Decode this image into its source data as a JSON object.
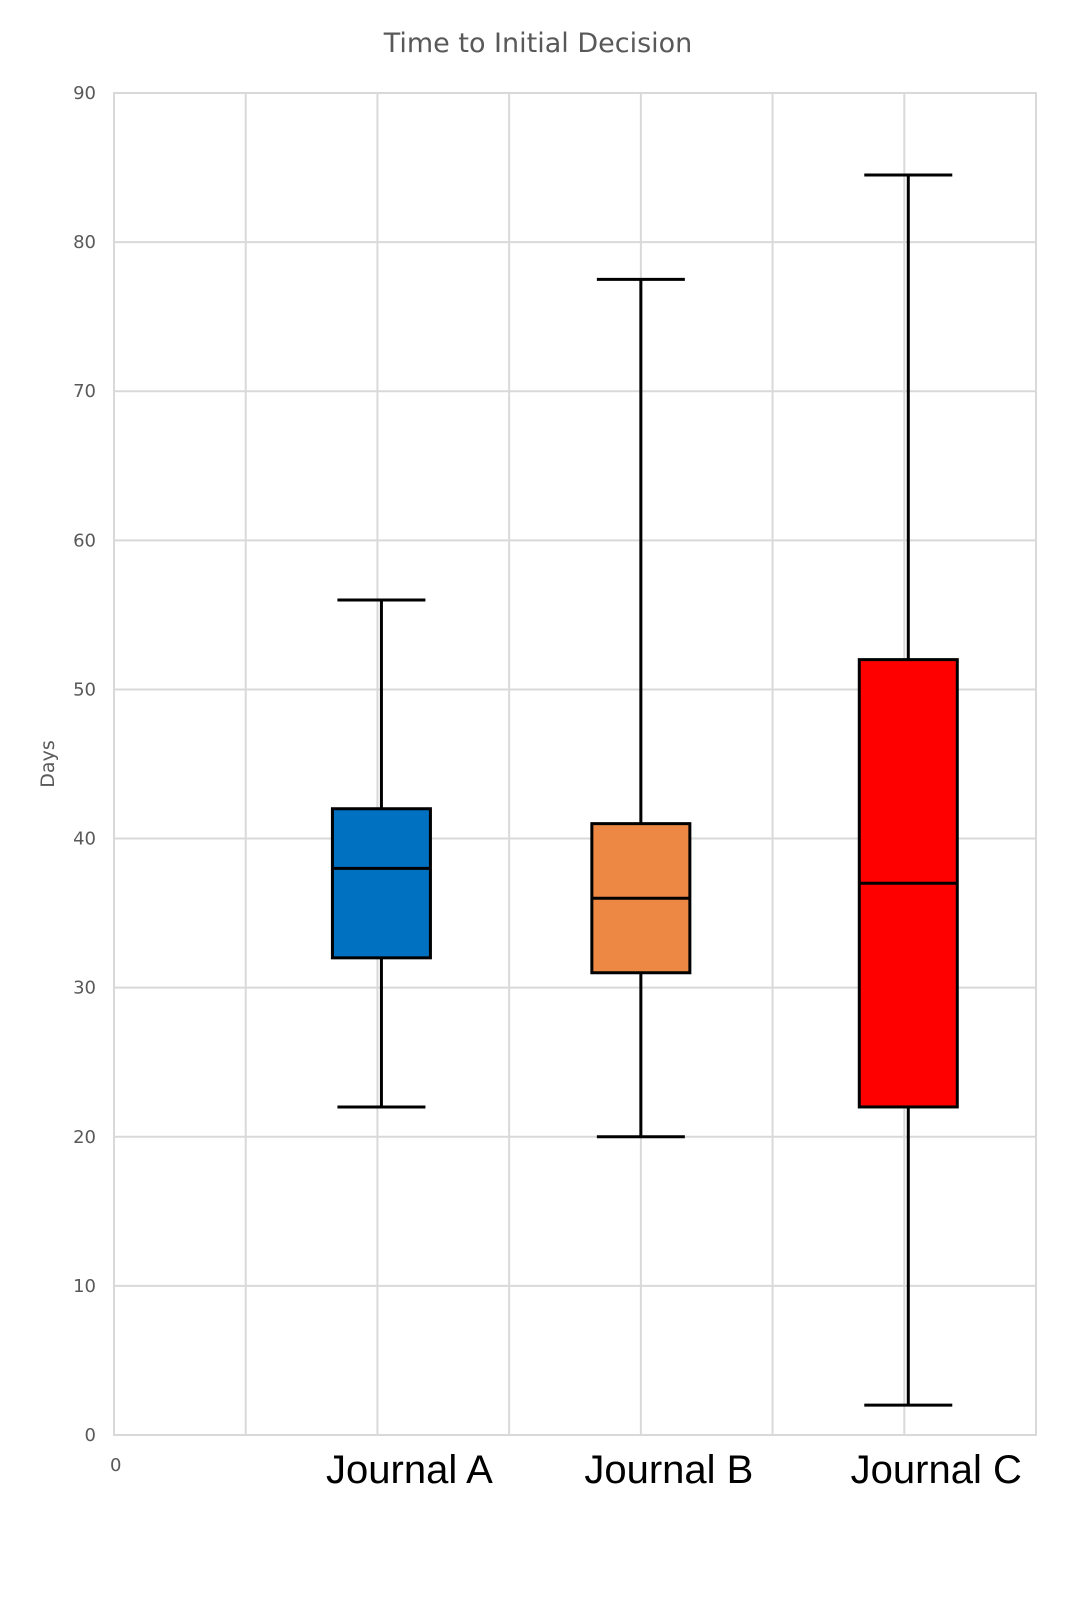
{
  "chart_data": {
    "type": "box",
    "title": "Time to Initial Decision",
    "ylabel": "Days",
    "xlabel": "",
    "ylim": [
      0,
      90
    ],
    "yticks": [
      "0",
      "10",
      "20",
      "30",
      "40",
      "50",
      "60",
      "70",
      "80",
      "90"
    ],
    "x_zero_label": "0",
    "categories": [
      "Journal A",
      "Journal B",
      "Journal C"
    ],
    "grid": true,
    "series": [
      {
        "category": "Journal A",
        "min": 22,
        "q1": 32,
        "median": 38,
        "q3": 42,
        "max": 56,
        "color": "#0070C0"
      },
      {
        "category": "Journal B",
        "min": 20,
        "q1": 31,
        "median": 36,
        "q3": 41,
        "max": 77.5,
        "color": "#ED8844"
      },
      {
        "category": "Journal C",
        "min": 2,
        "q1": 22,
        "median": 37,
        "q3": 52,
        "max": 84.5,
        "color": "#FF0000"
      }
    ]
  }
}
